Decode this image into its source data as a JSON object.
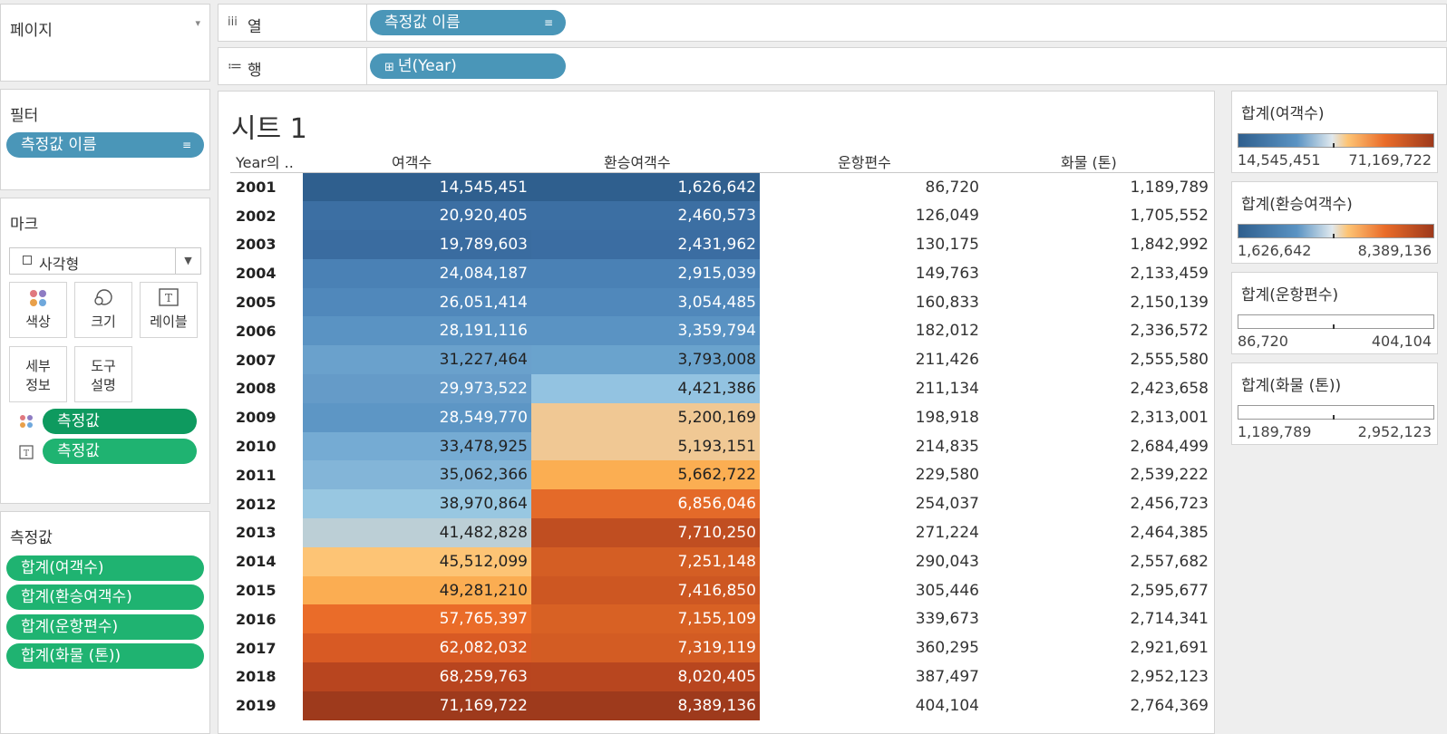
{
  "left": {
    "pages": {
      "title": "페이지"
    },
    "filters": {
      "title": "필터",
      "pill": "측정값 이름"
    },
    "marks": {
      "title": "마크",
      "type": "사각형",
      "buttons": {
        "color": "색상",
        "size": "크기",
        "label": "레이블",
        "detail_1": "세부",
        "detail_2": "정보",
        "tooltip_1": "도구",
        "tooltip_2": "설명"
      },
      "pills": [
        "측정값",
        "측정값"
      ]
    },
    "measures": {
      "title": "측정값",
      "items": [
        "합계(여객수)",
        "합계(환승여객수)",
        "합계(운항편수)",
        "합계(화물 (톤))"
      ]
    }
  },
  "shelves": {
    "columns": {
      "label": "열",
      "pill": "측정값 이름"
    },
    "rows": {
      "label": "행",
      "pill": "년(Year)"
    }
  },
  "sheet": {
    "title": "시트 1",
    "headers": [
      "Year의 ..",
      "여객수",
      "환승여객수",
      "운항편수",
      "화물 (톤)"
    ],
    "rows": [
      [
        "2001",
        "14,545,451",
        "1,626,642",
        "86,720",
        "1,189,789"
      ],
      [
        "2002",
        "20,920,405",
        "2,460,573",
        "126,049",
        "1,705,552"
      ],
      [
        "2003",
        "19,789,603",
        "2,431,962",
        "130,175",
        "1,842,992"
      ],
      [
        "2004",
        "24,084,187",
        "2,915,039",
        "149,763",
        "2,133,459"
      ],
      [
        "2005",
        "26,051,414",
        "3,054,485",
        "160,833",
        "2,150,139"
      ],
      [
        "2006",
        "28,191,116",
        "3,359,794",
        "182,012",
        "2,336,572"
      ],
      [
        "2007",
        "31,227,464",
        "3,793,008",
        "211,426",
        "2,555,580"
      ],
      [
        "2008",
        "29,973,522",
        "4,421,386",
        "211,134",
        "2,423,658"
      ],
      [
        "2009",
        "28,549,770",
        "5,200,169",
        "198,918",
        "2,313,001"
      ],
      [
        "2010",
        "33,478,925",
        "5,193,151",
        "214,835",
        "2,684,499"
      ],
      [
        "2011",
        "35,062,366",
        "5,662,722",
        "229,580",
        "2,539,222"
      ],
      [
        "2012",
        "38,970,864",
        "6,856,046",
        "254,037",
        "2,456,723"
      ],
      [
        "2013",
        "41,482,828",
        "7,710,250",
        "271,224",
        "2,464,385"
      ],
      [
        "2014",
        "45,512,099",
        "7,251,148",
        "290,043",
        "2,557,682"
      ],
      [
        "2015",
        "49,281,210",
        "7,416,850",
        "305,446",
        "2,595,677"
      ],
      [
        "2016",
        "57,765,397",
        "7,155,109",
        "339,673",
        "2,714,341"
      ],
      [
        "2017",
        "62,082,032",
        "7,319,119",
        "360,295",
        "2,921,691"
      ],
      [
        "2018",
        "68,259,763",
        "8,020,405",
        "387,497",
        "2,952,123"
      ],
      [
        "2019",
        "71,169,722",
        "8,389,136",
        "404,104",
        "2,764,369"
      ]
    ],
    "colors": {
      "col1": [
        "#2f5f8e",
        "#3c6fa3",
        "#3a6ca0",
        "#4a81b5",
        "#5088bb",
        "#5a93c3",
        "#6aa1cc",
        "#659bc8",
        "#5d96c5",
        "#75abd3",
        "#83b5d8",
        "#98c7e1",
        "#bccfd6",
        "#fdc475",
        "#fbad52",
        "#ea6c29",
        "#d85a24",
        "#b8451f",
        "#9e3a1c"
      ],
      "col2": [
        "#2f5f8e",
        "#3c6fa3",
        "#3b6da2",
        "#4a81b5",
        "#5088bb",
        "#5a93c3",
        "#6aa3cd",
        "#93c3e1",
        "#f0c894",
        "#f0c894",
        "#fbae52",
        "#e46a29",
        "#c04e21",
        "#d45e24",
        "#cd5722",
        "#d86124",
        "#d35c23",
        "#b8461f",
        "#9e3a1c"
      ],
      "white_text_col1": [
        true,
        true,
        true,
        true,
        true,
        true,
        false,
        true,
        true,
        false,
        false,
        false,
        false,
        false,
        false,
        true,
        true,
        true,
        true
      ],
      "white_text_col2": [
        true,
        true,
        true,
        true,
        true,
        true,
        false,
        false,
        false,
        false,
        false,
        true,
        true,
        true,
        true,
        true,
        true,
        true,
        true
      ]
    }
  },
  "legends": [
    {
      "title": "합계(여객수)",
      "min": "14,545,451",
      "max": "71,169,722",
      "gradient": "linear-gradient(to right, #2f5f8e, #5a93c3 30%, #dfe8ee 48%, #fdc475 56%, #ea6c29 75%, #9e3a1c)"
    },
    {
      "title": "합계(환승여객수)",
      "min": "1,626,642",
      "max": "8,389,136",
      "gradient": "linear-gradient(to right, #2f5f8e, #5a93c3 30%, #dfe8ee 48%, #fdc475 56%, #ea6c29 75%, #9e3a1c)"
    },
    {
      "title": "합계(운항편수)",
      "min": "86,720",
      "max": "404,104",
      "gradient": "#ffffff"
    },
    {
      "title": "합계(화물 (톤))",
      "min": "1,189,789",
      "max": "2,952,123",
      "gradient": "#ffffff"
    }
  ]
}
